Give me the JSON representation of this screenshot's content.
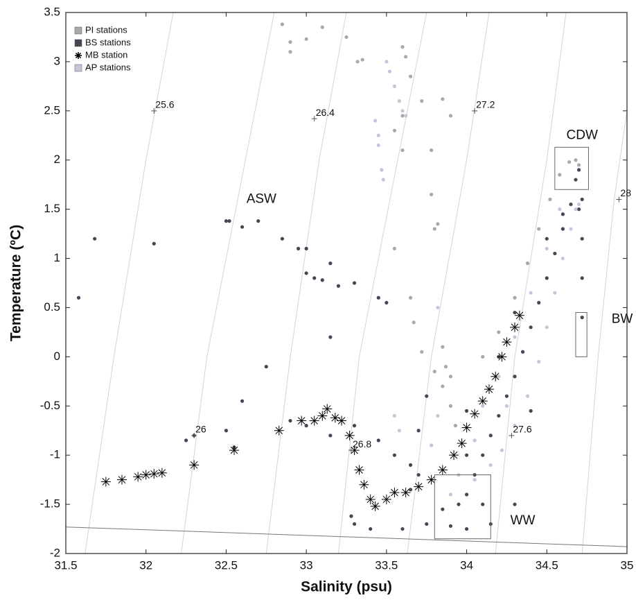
{
  "chart_data": {
    "type": "scatter",
    "x_label": "Salinity (psu)",
    "y_label": "Temperature (ºC)",
    "xlim": [
      31.5,
      35
    ],
    "ylim": [
      -2,
      3.5
    ],
    "xticks": [
      31.5,
      32,
      32.5,
      33,
      33.5,
      34,
      34.5,
      35
    ],
    "yticks": [
      -2,
      -1.5,
      -1,
      -0.5,
      0,
      0.5,
      1,
      1.5,
      2,
      2.5,
      3,
      3.5
    ],
    "legend": "upper left",
    "series": [
      {
        "name": "PI stations",
        "color": "#a9a9a9",
        "marker": "circle",
        "x": [
          32.85,
          32.9,
          32.9,
          33.0,
          33.1,
          33.25,
          33.32,
          33.35,
          33.6,
          33.62,
          33.65,
          33.72,
          33.85,
          33.9,
          33.6,
          33.55,
          33.6,
          33.78,
          33.78,
          33.82,
          33.8,
          33.55,
          33.65,
          33.67,
          33.72,
          33.8,
          33.85,
          33.9,
          33.93,
          33.9,
          33.85,
          33.87,
          34.1,
          34.2,
          34.3,
          34.38,
          34.45,
          34.52,
          34.58,
          34.64,
          34.68,
          34.7
        ],
        "y": [
          3.38,
          3.2,
          3.1,
          3.23,
          3.35,
          3.25,
          3.0,
          3.02,
          3.15,
          3.05,
          2.85,
          2.6,
          2.62,
          2.45,
          2.45,
          2.3,
          2.1,
          2.1,
          1.65,
          1.35,
          1.3,
          1.1,
          0.6,
          0.35,
          0.05,
          -0.15,
          -0.3,
          -0.5,
          -0.7,
          -0.2,
          0.1,
          -0.1,
          0.0,
          0.25,
          0.6,
          0.95,
          1.3,
          1.6,
          1.85,
          1.98,
          2.0,
          1.95
        ]
      },
      {
        "name": "BS stations",
        "color": "#464656",
        "marker": "circle",
        "x": [
          31.58,
          31.68,
          32.05,
          32.25,
          32.3,
          32.5,
          32.55,
          32.6,
          32.75,
          32.5,
          32.52,
          32.6,
          32.7,
          32.85,
          32.95,
          33.0,
          33.0,
          33.05,
          33.1,
          33.15,
          33.2,
          33.3,
          33.45,
          33.5,
          33.15,
          32.9,
          33.0,
          33.15,
          33.3,
          33.45,
          33.55,
          33.65,
          33.7,
          33.28,
          33.3,
          33.4,
          33.6,
          33.75,
          33.85,
          33.95,
          34.0,
          34.05,
          34.1,
          34.15,
          34.2,
          34.25,
          34.3,
          34.35,
          34.4,
          34.45,
          34.5,
          34.55,
          34.6,
          34.65,
          34.68,
          34.7,
          34.72,
          34.72,
          34.72,
          34.72,
          34.4,
          34.1,
          34.15,
          34.0,
          33.9,
          34.3,
          34.0,
          34.2,
          34.3,
          34.5,
          34.6,
          34.7,
          34.0,
          33.7,
          33.75,
          33.65
        ],
        "y": [
          0.6,
          1.2,
          1.15,
          -0.85,
          -0.8,
          -0.75,
          -0.92,
          -0.45,
          -0.1,
          1.38,
          1.38,
          1.32,
          1.38,
          1.2,
          1.1,
          1.1,
          0.85,
          0.8,
          0.78,
          0.95,
          0.72,
          0.75,
          0.6,
          0.55,
          0.2,
          -0.65,
          -0.7,
          -0.8,
          -0.7,
          -0.85,
          -1.0,
          -1.1,
          -1.2,
          -1.62,
          -1.7,
          -1.75,
          -1.75,
          -1.7,
          -1.55,
          -1.5,
          -1.4,
          -1.2,
          -1.0,
          -0.8,
          -0.6,
          -0.4,
          -0.2,
          0.05,
          0.3,
          0.55,
          0.8,
          1.05,
          1.3,
          1.55,
          1.8,
          1.9,
          1.6,
          1.2,
          0.8,
          0.4,
          -0.55,
          -1.5,
          -1.7,
          -1.75,
          -1.72,
          -1.5,
          -1.0,
          0.0,
          0.45,
          1.2,
          1.45,
          1.5,
          -0.55,
          -0.75,
          -0.4,
          -1.35
        ]
      },
      {
        "name": "MB station",
        "color": "#000000",
        "marker": "asterisk",
        "x": [
          31.75,
          31.85,
          31.95,
          32.0,
          32.05,
          32.1,
          32.3,
          32.55,
          32.83,
          32.97,
          33.05,
          33.1,
          33.13,
          33.18,
          33.22,
          33.27,
          33.3,
          33.33,
          33.36,
          33.4,
          33.43,
          33.5,
          33.55,
          33.62,
          33.7,
          33.78,
          33.85,
          33.92,
          33.97,
          34.0,
          34.05,
          34.1,
          34.14,
          34.18,
          34.22,
          34.25,
          34.3,
          34.33
        ],
        "y": [
          -1.27,
          -1.25,
          -1.22,
          -1.2,
          -1.19,
          -1.18,
          -1.1,
          -0.95,
          -0.75,
          -0.65,
          -0.65,
          -0.6,
          -0.53,
          -0.62,
          -0.65,
          -0.8,
          -0.95,
          -1.15,
          -1.3,
          -1.45,
          -1.52,
          -1.45,
          -1.38,
          -1.38,
          -1.32,
          -1.25,
          -1.15,
          -1.0,
          -0.88,
          -0.72,
          -0.58,
          -0.45,
          -0.33,
          -0.2,
          0.0,
          0.15,
          0.3,
          0.42
        ]
      },
      {
        "name": "AP stations",
        "color": "#c6c6da",
        "marker": "circle",
        "x": [
          33.5,
          33.52,
          33.55,
          33.58,
          33.6,
          33.62,
          33.43,
          33.45,
          33.45,
          33.47,
          33.48,
          33.82,
          33.82,
          33.78,
          33.95,
          34.05,
          34.15,
          34.22,
          34.3,
          34.38,
          34.45,
          34.5,
          34.55,
          34.6,
          34.65,
          34.68,
          34.7,
          33.9,
          34.1,
          34.2,
          34.3,
          34.4,
          34.5,
          34.58,
          33.55,
          33.58,
          34.05,
          34.25
        ],
        "y": [
          3.0,
          2.9,
          2.75,
          2.6,
          2.5,
          2.45,
          2.4,
          2.25,
          2.15,
          1.9,
          1.8,
          0.5,
          -0.6,
          -0.9,
          -1.2,
          -1.25,
          -1.1,
          -0.95,
          -0.7,
          -0.4,
          -0.05,
          0.3,
          0.65,
          1.0,
          1.3,
          1.5,
          1.55,
          -1.4,
          -0.5,
          -0.2,
          0.2,
          0.65,
          1.1,
          1.5,
          -0.6,
          -0.75,
          -0.85,
          -0.5
        ]
      }
    ],
    "isopycnals": [
      {
        "label": "25.6",
        "label_at": [
          32.05,
          2.5
        ],
        "points": [
          [
            31.62,
            -2
          ],
          [
            31.8,
            0
          ],
          [
            32.0,
            2
          ],
          [
            32.17,
            3.5
          ]
        ]
      },
      {
        "label": "26",
        "label_at": [
          32.3,
          -0.8
        ],
        "points": [
          [
            32.22,
            -2
          ],
          [
            32.38,
            0
          ],
          [
            32.62,
            2
          ],
          [
            32.8,
            3.5
          ]
        ]
      },
      {
        "label": "26.4",
        "label_at": [
          33.05,
          2.42
        ],
        "points": [
          [
            32.75,
            -2
          ],
          [
            32.9,
            0
          ],
          [
            33.08,
            2
          ],
          [
            33.25,
            3.5
          ]
        ]
      },
      {
        "label": "26.8",
        "label_at": [
          33.28,
          -0.95
        ],
        "points": [
          [
            33.2,
            -2
          ],
          [
            33.33,
            0
          ],
          [
            33.57,
            2
          ],
          [
            33.75,
            3.5
          ]
        ]
      },
      {
        "label": "27.2",
        "label_at": [
          34.05,
          2.5
        ],
        "points": [
          [
            33.63,
            -2
          ],
          [
            33.78,
            0
          ],
          [
            34.0,
            2
          ],
          [
            34.14,
            3.5
          ]
        ]
      },
      {
        "label": "27.6",
        "label_at": [
          34.28,
          -0.8
        ],
        "points": [
          [
            34.18,
            -2
          ],
          [
            34.3,
            0
          ],
          [
            34.5,
            2
          ],
          [
            34.62,
            3.5
          ]
        ]
      },
      {
        "label": "28",
        "label_at": [
          34.95,
          1.6
        ],
        "points": [
          [
            34.72,
            -2
          ],
          [
            34.82,
            0
          ],
          [
            34.92,
            1.6
          ],
          [
            35.0,
            2.5
          ]
        ]
      }
    ],
    "freezing_line": [
      [
        31.5,
        -1.73
      ],
      [
        35,
        -1.93
      ]
    ],
    "water_masses": [
      {
        "label": "ASW",
        "label_at": [
          32.72,
          1.6
        ]
      },
      {
        "label": "CDW",
        "label_at": [
          34.72,
          2.25
        ],
        "xlim": [
          34.55,
          34.76
        ],
        "ylim": [
          1.7,
          2.13
        ]
      },
      {
        "label": "BW",
        "label_at": [
          34.97,
          0.38
        ],
        "xlim": [
          34.68,
          34.75
        ],
        "ylim": [
          0,
          0.45
        ]
      },
      {
        "label": "WW",
        "label_at": [
          34.35,
          -1.67
        ],
        "xlim": [
          33.8,
          34.15
        ],
        "ylim": [
          -1.85,
          -1.2
        ]
      }
    ]
  }
}
